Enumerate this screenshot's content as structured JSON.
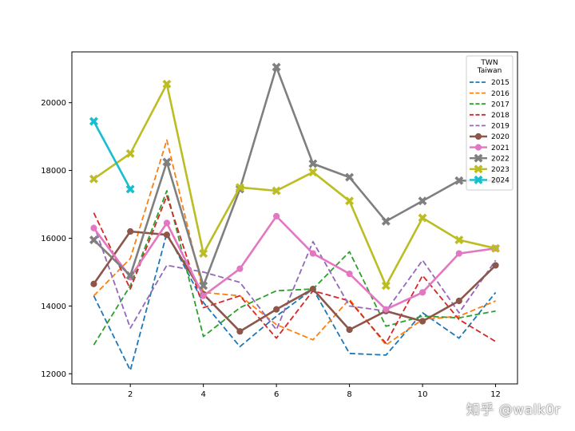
{
  "chart_data": {
    "type": "line",
    "x": [
      1,
      2,
      3,
      4,
      5,
      6,
      7,
      8,
      9,
      10,
      11,
      12
    ],
    "xticks": [
      2,
      4,
      6,
      8,
      10,
      12
    ],
    "yticks": [
      12000,
      14000,
      16000,
      18000,
      20000
    ],
    "xlim": [
      0.4,
      12.6
    ],
    "ylim": [
      11700,
      21500
    ],
    "legend": {
      "title": "TWN\nTaiwan",
      "placement": "top-right"
    },
    "series": [
      {
        "name": "2015",
        "color": "#1f77b4",
        "style": "dashed",
        "marker": "none",
        "values": [
          14300,
          12100,
          16150,
          14100,
          12800,
          13700,
          14500,
          12600,
          12550,
          13800,
          13050,
          14400
        ]
      },
      {
        "name": "2016",
        "color": "#ff7f0e",
        "style": "dashed",
        "marker": "none",
        "values": [
          14300,
          15400,
          18900,
          14400,
          14300,
          13450,
          13000,
          14200,
          12850,
          13600,
          13700,
          14150
        ]
      },
      {
        "name": "2017",
        "color": "#2ca02c",
        "style": "dashed",
        "marker": "none",
        "values": [
          12850,
          14600,
          17400,
          13100,
          13950,
          14450,
          14500,
          15600,
          13400,
          13700,
          13650,
          13850
        ]
      },
      {
        "name": "2018",
        "color": "#d62728",
        "style": "dashed",
        "marker": "none",
        "values": [
          16750,
          14500,
          17250,
          13950,
          14300,
          13050,
          14450,
          14150,
          12900,
          14900,
          13600,
          12950
        ]
      },
      {
        "name": "2019",
        "color": "#9467bd",
        "style": "dashed",
        "marker": "none",
        "values": [
          16400,
          13350,
          15200,
          15000,
          14700,
          13300,
          15900,
          14000,
          13850,
          15350,
          13800,
          15350
        ]
      },
      {
        "name": "2020",
        "color": "#8c564b",
        "style": "solid",
        "marker": "circle",
        "values": [
          14650,
          16200,
          16100,
          14350,
          13250,
          13900,
          14500,
          13300,
          13850,
          13550,
          14150,
          15200
        ]
      },
      {
        "name": "2021",
        "color": "#e377c2",
        "style": "solid",
        "marker": "circle",
        "values": [
          16300,
          14850,
          16450,
          14300,
          15100,
          16650,
          15550,
          14950,
          13900,
          14400,
          15550,
          15700
        ]
      },
      {
        "name": "2022",
        "color": "#7f7f7f",
        "style": "solid",
        "marker": "x",
        "values": [
          15950,
          14900,
          18250,
          14600,
          17450,
          21050,
          18200,
          17800,
          16500,
          17100,
          17700,
          17700
        ]
      },
      {
        "name": "2023",
        "color": "#bcbd22",
        "style": "solid",
        "marker": "x",
        "values": [
          17750,
          18500,
          20550,
          15550,
          17500,
          17400,
          17950,
          17100,
          14600,
          16600,
          15950,
          15700
        ]
      },
      {
        "name": "2024",
        "color": "#17becf",
        "style": "solid",
        "marker": "x",
        "values": [
          19450,
          17450,
          null,
          null,
          null,
          null,
          null,
          null,
          null,
          null,
          null,
          null
        ]
      }
    ]
  },
  "watermark": "知乎 @walk0r"
}
